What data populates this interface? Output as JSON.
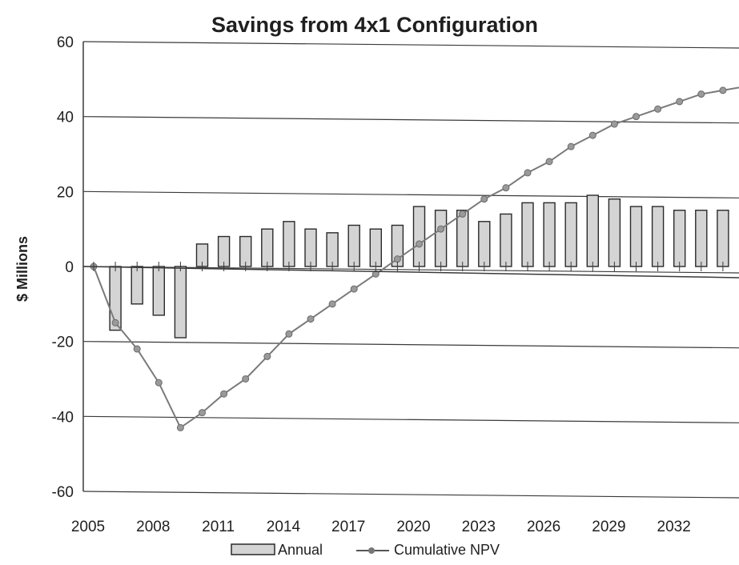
{
  "chart_data": {
    "type": "bar+line",
    "title": "Savings from 4x1 Configuration",
    "xlabel": "",
    "ylabel": "$ Millions",
    "ylim": [
      -60,
      60
    ],
    "yticks": [
      "60",
      "40",
      "20",
      "0",
      "-20",
      "-40",
      "-60"
    ],
    "xlim": [
      2005,
      2035
    ],
    "xticks": [
      "2005",
      "2008",
      "2011",
      "2014",
      "2017",
      "2020",
      "2023",
      "2026",
      "2029",
      "2032"
    ],
    "grid": true,
    "legend_position": "bottom",
    "colors": {
      "annual_fill": "#d4d4d4",
      "annual_stroke": "#2a2a2a",
      "npv_line": "#7a7a7a",
      "npv_marker": "#9a9a9a",
      "grid": "#3a3a3a",
      "axis": "#3a3a3a"
    },
    "series": [
      {
        "name": "Annual",
        "type": "bar",
        "x": [
          2006,
          2007,
          2008,
          2009,
          2010,
          2011,
          2012,
          2013,
          2014,
          2015,
          2016,
          2017,
          2018,
          2019,
          2020,
          2021,
          2022,
          2023,
          2024,
          2025,
          2026,
          2027,
          2028,
          2029,
          2030,
          2031,
          2032,
          2033,
          2034
        ],
        "values": [
          -17,
          -10,
          -13,
          -19,
          6,
          8,
          8,
          10,
          12,
          10,
          9,
          11,
          10,
          11,
          16,
          15,
          15,
          12,
          14,
          17,
          17,
          17,
          19,
          18,
          16,
          16,
          15,
          15,
          15
        ]
      },
      {
        "name": "Cumulative NPV",
        "type": "line",
        "x": [
          2005,
          2006,
          2007,
          2008,
          2009,
          2010,
          2011,
          2012,
          2013,
          2014,
          2015,
          2016,
          2017,
          2018,
          2019,
          2020,
          2021,
          2022,
          2023,
          2024,
          2025,
          2026,
          2027,
          2028,
          2029,
          2030,
          2031,
          2032,
          2033,
          2034,
          2035
        ],
        "values": [
          0,
          -15,
          -22,
          -31,
          -43,
          -39,
          -34,
          -30,
          -24,
          -18,
          -14,
          -10,
          -6,
          -2,
          2,
          6,
          10,
          14,
          18,
          21,
          25,
          28,
          32,
          35,
          38,
          40,
          42,
          44,
          46,
          47,
          48
        ]
      }
    ]
  }
}
